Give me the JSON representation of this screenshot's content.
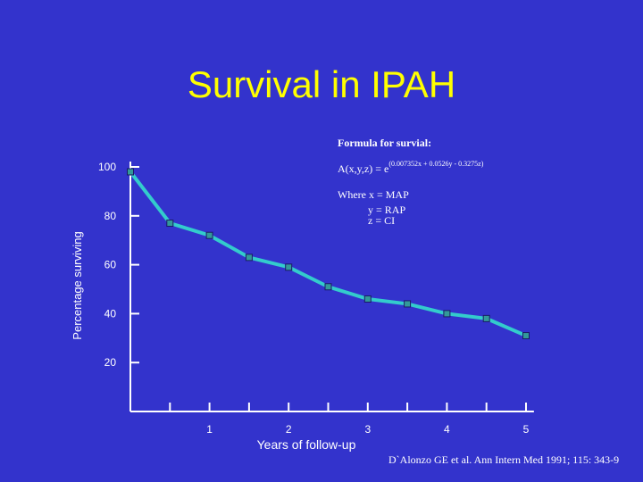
{
  "slide": {
    "title": "Survival in IPAH",
    "formula_heading": "Formula for survial:",
    "formula_lhs": "A(x,y,z) = e",
    "formula_exponent": "(0.007352x + 0.0526y - 0.3275z)",
    "where_line": "Where x = MAP",
    "where_y": "y = RAP",
    "where_z": "z = CI",
    "citation": "D`Alonzo GE et al.  Ann Intern Med 1991; 115: 343-9",
    "colors": {
      "background": "#3333cc",
      "title": "#ffff00",
      "line": "#33cccc",
      "marker": "#339999",
      "axis": "#ffffff"
    }
  },
  "chart_data": {
    "type": "line",
    "title": "",
    "xlabel": "Years of follow-up",
    "ylabel": "Percentage surviving",
    "xlim": [
      0,
      5.1
    ],
    "ylim": [
      0,
      100
    ],
    "x_ticks_labeled": [
      1,
      2,
      3,
      4,
      5
    ],
    "x_ticks_minor": [
      0.5,
      1.5,
      2.5,
      3.5,
      4.5
    ],
    "y_ticks": [
      20,
      40,
      60,
      80,
      100
    ],
    "grid": false,
    "series": [
      {
        "x": [
          0,
          0.5,
          1.0,
          1.5,
          2.0,
          2.5,
          3.0,
          3.5,
          4.0,
          4.5,
          5.0
        ],
        "y": [
          98,
          77,
          72,
          63,
          59,
          51,
          46,
          44,
          40,
          38,
          31
        ]
      }
    ]
  }
}
